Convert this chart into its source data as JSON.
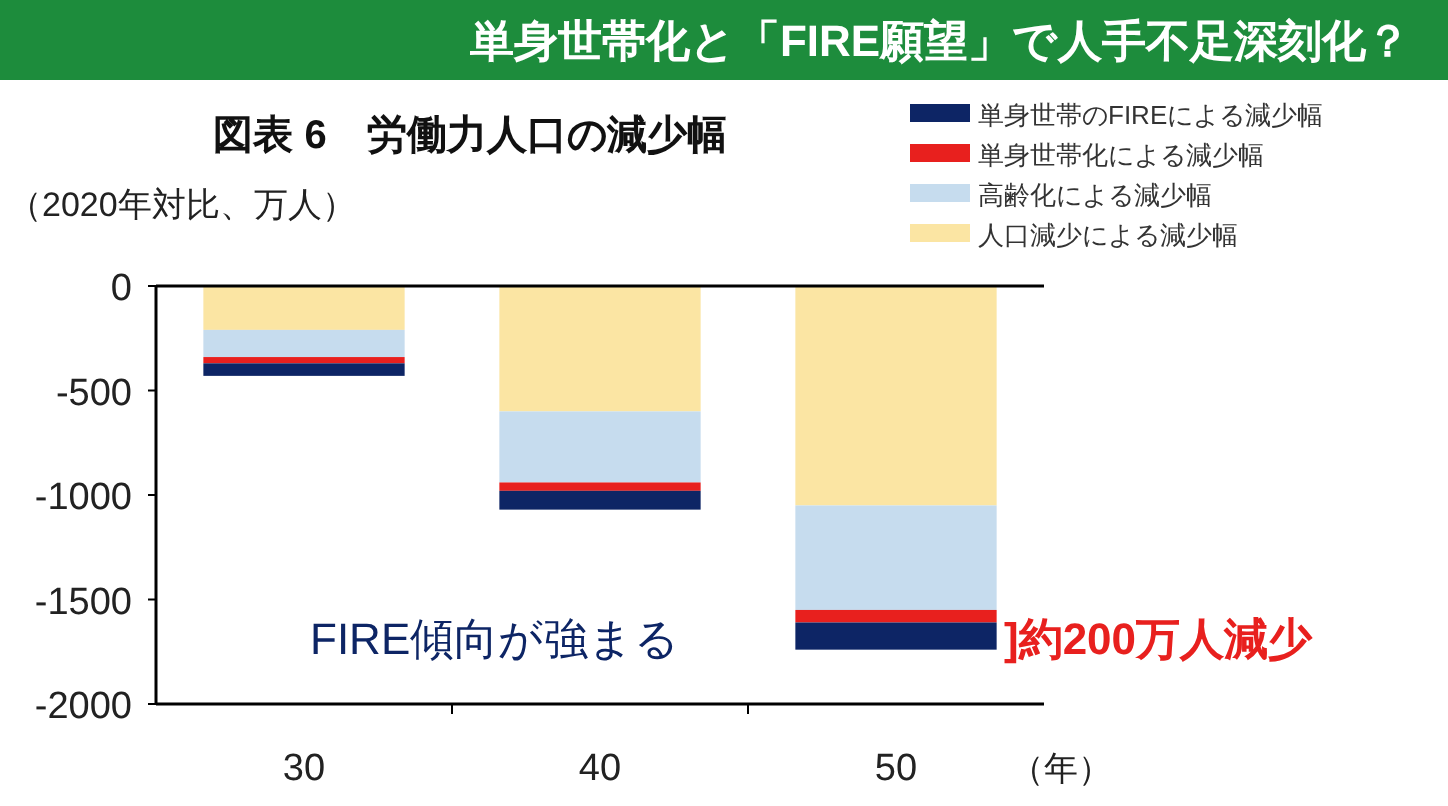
{
  "chart_data": {
    "type": "bar",
    "stacked": true,
    "title": "単身世帯化と「FIRE願望」で人手不足深刻化？",
    "subtitle": "図表 6　労働力人口の減少幅",
    "ylabel": "（2020年対比、万人）",
    "xlabel": "（年）",
    "categories": [
      "30",
      "40",
      "50"
    ],
    "series": [
      {
        "name": "人口減少による減少幅",
        "color": "#fbe5a3",
        "values": [
          -210,
          -600,
          -1050
        ]
      },
      {
        "name": "高齢化による減少幅",
        "color": "#c6dcee",
        "values": [
          -130,
          -340,
          -500
        ]
      },
      {
        "name": "単身世帯化による減少幅",
        "color": "#e8201e",
        "values": [
          -30,
          -40,
          -60
        ]
      },
      {
        "name": "単身世帯のFIREによる減少幅",
        "color": "#0d2565",
        "values": [
          -60,
          -90,
          -130
        ]
      }
    ],
    "ylim": [
      -2000,
      0
    ],
    "yticks": [
      -2000,
      -1500,
      -1000,
      -500,
      0
    ],
    "grid": false,
    "legend": "top right",
    "annotations": [
      "FIRE傾向が強まる",
      "]約200万人減少"
    ]
  }
}
